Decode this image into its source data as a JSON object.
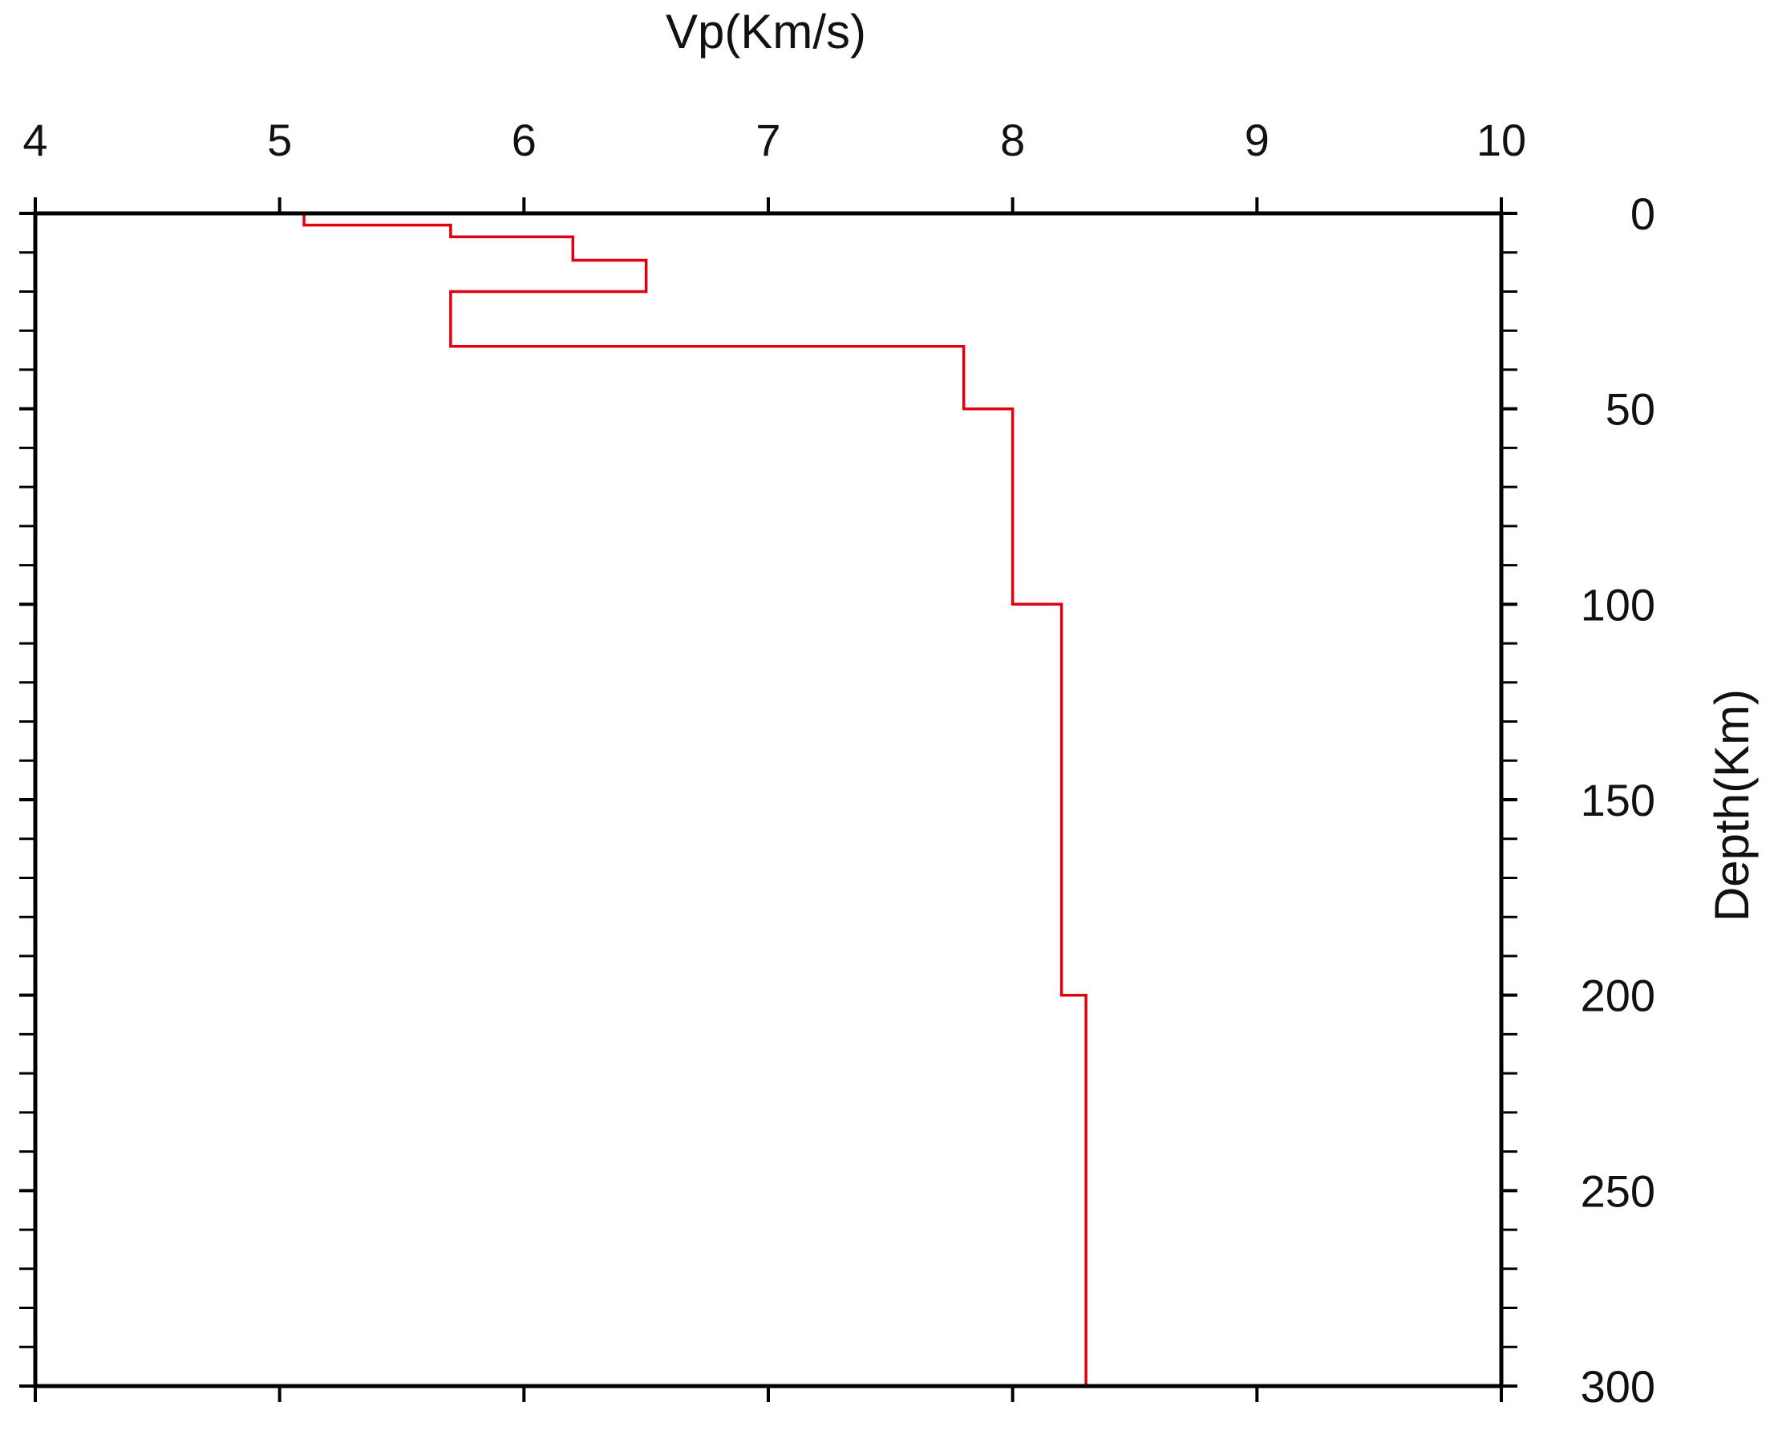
{
  "chart_data": {
    "type": "line",
    "xlabel": "Vp(Km/s)",
    "ylabel": "Depth(Km)",
    "xlim": [
      4,
      10
    ],
    "ylim": [
      0,
      300
    ],
    "y_inverted": true,
    "x_ticks": [
      "4",
      "5",
      "6",
      "7",
      "8",
      "9",
      "10"
    ],
    "y_ticks": [
      "0",
      "50",
      "100",
      "150",
      "200",
      "250",
      "300"
    ],
    "grid": false,
    "line_color": "#e0000f",
    "axis_color": "#000000",
    "series": [
      {
        "style": "step",
        "points": [
          [
            5.1,
            0
          ],
          [
            5.1,
            3
          ],
          [
            5.7,
            3
          ],
          [
            5.7,
            6
          ],
          [
            6.2,
            6
          ],
          [
            6.2,
            12
          ],
          [
            6.5,
            12
          ],
          [
            6.5,
            20
          ],
          [
            5.7,
            20
          ],
          [
            5.7,
            34
          ],
          [
            7.8,
            34
          ],
          [
            7.8,
            50
          ],
          [
            8.0,
            50
          ],
          [
            8.0,
            100
          ],
          [
            8.2,
            100
          ],
          [
            8.2,
            200
          ],
          [
            8.3,
            200
          ],
          [
            8.3,
            300
          ]
        ]
      }
    ]
  }
}
